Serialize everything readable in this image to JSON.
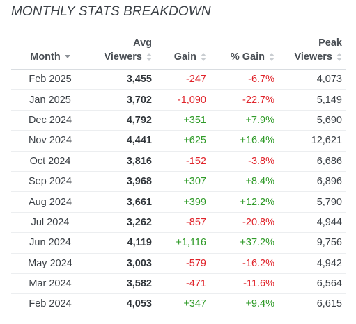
{
  "title": "MONTHLY STATS BREAKDOWN",
  "colors": {
    "negative": "#e0242b",
    "positive": "#2e9a27"
  },
  "columns": {
    "month": "Month",
    "avg_line1": "Avg",
    "avg_line2": "Viewers",
    "gain": "Gain",
    "pct_gain": "% Gain",
    "peak_line1": "Peak",
    "peak_line2": "Viewers"
  },
  "sort": {
    "column": "month",
    "direction": "descending",
    "icon": "sort-down-icon"
  },
  "rows": [
    {
      "month": "Feb 2025",
      "avg": "3,455",
      "gain": "-247",
      "pct": "-6.7%",
      "peak": "4,073",
      "trend": "neg"
    },
    {
      "month": "Jan 2025",
      "avg": "3,702",
      "gain": "-1,090",
      "pct": "-22.7%",
      "peak": "5,149",
      "trend": "neg"
    },
    {
      "month": "Dec 2024",
      "avg": "4,792",
      "gain": "+351",
      "pct": "+7.9%",
      "peak": "5,690",
      "trend": "pos"
    },
    {
      "month": "Nov 2024",
      "avg": "4,441",
      "gain": "+625",
      "pct": "+16.4%",
      "peak": "12,621",
      "trend": "pos"
    },
    {
      "month": "Oct 2024",
      "avg": "3,816",
      "gain": "-152",
      "pct": "-3.8%",
      "peak": "6,686",
      "trend": "neg"
    },
    {
      "month": "Sep 2024",
      "avg": "3,968",
      "gain": "+307",
      "pct": "+8.4%",
      "peak": "6,896",
      "trend": "pos"
    },
    {
      "month": "Aug 2024",
      "avg": "3,661",
      "gain": "+399",
      "pct": "+12.2%",
      "peak": "5,790",
      "trend": "pos"
    },
    {
      "month": "Jul 2024",
      "avg": "3,262",
      "gain": "-857",
      "pct": "-20.8%",
      "peak": "4,944",
      "trend": "neg"
    },
    {
      "month": "Jun 2024",
      "avg": "4,119",
      "gain": "+1,116",
      "pct": "+37.2%",
      "peak": "9,756",
      "trend": "pos"
    },
    {
      "month": "May 2024",
      "avg": "3,003",
      "gain": "-579",
      "pct": "-16.2%",
      "peak": "4,942",
      "trend": "neg"
    },
    {
      "month": "Mar 2024",
      "avg": "3,582",
      "gain": "-471",
      "pct": "-11.6%",
      "peak": "6,564",
      "trend": "neg"
    },
    {
      "month": "Feb 2024",
      "avg": "4,053",
      "gain": "+347",
      "pct": "+9.4%",
      "peak": "6,615",
      "trend": "pos"
    }
  ]
}
